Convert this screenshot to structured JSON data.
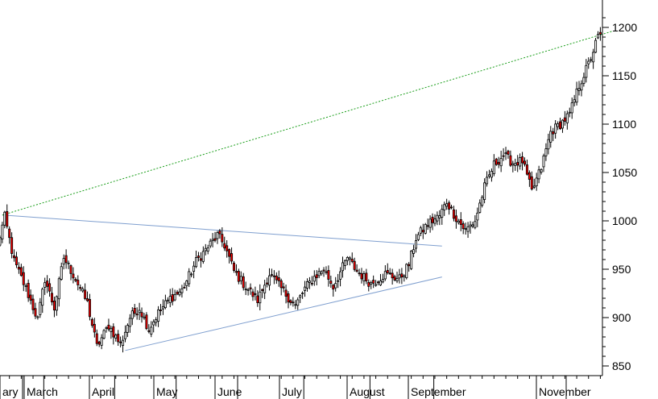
{
  "chart_data": {
    "type": "candlestick",
    "title": "",
    "xlabel": "",
    "ylabel": "",
    "ylim": [
      840,
      1215
    ],
    "y_ticks": [
      850,
      900,
      950,
      1000,
      1050,
      1100,
      1150,
      1200
    ],
    "y_axis_side": "right",
    "x_tick_labels": [
      "ary",
      "March",
      "April",
      "May",
      "June",
      "July",
      "August",
      "September",
      "November"
    ],
    "grid": false,
    "colors": {
      "up_candle": "#ffffff",
      "down_candle": "#ff0000",
      "wick": "#000000",
      "trend_upper_channel": "#7f9fcf",
      "trend_lower_channel": "#7f9fcf",
      "trend_major": "#1a9e1a"
    },
    "trendlines": [
      {
        "style": "solid",
        "color": "#7f9fcf",
        "from": {
          "index": 2,
          "y": 1006
        },
        "to": {
          "index": 188,
          "y": 974
        }
      },
      {
        "style": "solid",
        "color": "#7f9fcf",
        "from": {
          "index": 54,
          "y": 866
        },
        "to": {
          "index": 188,
          "y": 942
        }
      },
      {
        "style": "dotted",
        "color": "#1a9e1a",
        "from": {
          "index": 2,
          "y": 1006
        },
        "to": {
          "index": 260,
          "y": 1196
        }
      }
    ],
    "month_starts": [
      {
        "label": "ary",
        "index": 0
      },
      {
        "label": "March",
        "index": 10
      },
      {
        "label": "April",
        "index": 40
      },
      {
        "label": "May",
        "index": 66
      },
      {
        "label": "June",
        "index": 92
      },
      {
        "label": "July",
        "index": 120
      },
      {
        "label": "August",
        "index": 148
      },
      {
        "label": "September",
        "index": 175
      },
      {
        "label": "November",
        "index": 231
      }
    ],
    "anchors": [
      {
        "i": 0,
        "v": 975
      },
      {
        "i": 3,
        "v": 1004
      },
      {
        "i": 7,
        "v": 958
      },
      {
        "i": 12,
        "v": 930
      },
      {
        "i": 17,
        "v": 898
      },
      {
        "i": 20,
        "v": 940
      },
      {
        "i": 24,
        "v": 910
      },
      {
        "i": 28,
        "v": 962
      },
      {
        "i": 33,
        "v": 940
      },
      {
        "i": 38,
        "v": 915
      },
      {
        "i": 42,
        "v": 870
      },
      {
        "i": 47,
        "v": 892
      },
      {
        "i": 52,
        "v": 872
      },
      {
        "i": 56,
        "v": 900
      },
      {
        "i": 60,
        "v": 910
      },
      {
        "i": 64,
        "v": 888
      },
      {
        "i": 68,
        "v": 905
      },
      {
        "i": 73,
        "v": 920
      },
      {
        "i": 78,
        "v": 928
      },
      {
        "i": 84,
        "v": 958
      },
      {
        "i": 88,
        "v": 970
      },
      {
        "i": 93,
        "v": 985
      },
      {
        "i": 96,
        "v": 975
      },
      {
        "i": 100,
        "v": 948
      },
      {
        "i": 104,
        "v": 935
      },
      {
        "i": 110,
        "v": 918
      },
      {
        "i": 115,
        "v": 945
      },
      {
        "i": 120,
        "v": 930
      },
      {
        "i": 126,
        "v": 912
      },
      {
        "i": 130,
        "v": 930
      },
      {
        "i": 134,
        "v": 942
      },
      {
        "i": 138,
        "v": 950
      },
      {
        "i": 142,
        "v": 932
      },
      {
        "i": 148,
        "v": 962
      },
      {
        "i": 152,
        "v": 948
      },
      {
        "i": 158,
        "v": 935
      },
      {
        "i": 164,
        "v": 945
      },
      {
        "i": 170,
        "v": 940
      },
      {
        "i": 174,
        "v": 955
      },
      {
        "i": 177,
        "v": 982
      },
      {
        "i": 182,
        "v": 997
      },
      {
        "i": 187,
        "v": 1005
      },
      {
        "i": 190,
        "v": 1020
      },
      {
        "i": 194,
        "v": 1003
      },
      {
        "i": 198,
        "v": 990
      },
      {
        "i": 202,
        "v": 1000
      },
      {
        "i": 206,
        "v": 1035
      },
      {
        "i": 210,
        "v": 1058
      },
      {
        "i": 214,
        "v": 1068
      },
      {
        "i": 218,
        "v": 1060
      },
      {
        "i": 222,
        "v": 1062
      },
      {
        "i": 226,
        "v": 1030
      },
      {
        "i": 230,
        "v": 1055
      },
      {
        "i": 234,
        "v": 1092
      },
      {
        "i": 238,
        "v": 1100
      },
      {
        "i": 242,
        "v": 1110
      },
      {
        "i": 246,
        "v": 1140
      },
      {
        "i": 250,
        "v": 1162
      },
      {
        "i": 254,
        "v": 1190
      },
      {
        "i": 256,
        "v": 1192
      },
      {
        "i": 258,
        "v": 1178
      }
    ],
    "count": 259
  }
}
